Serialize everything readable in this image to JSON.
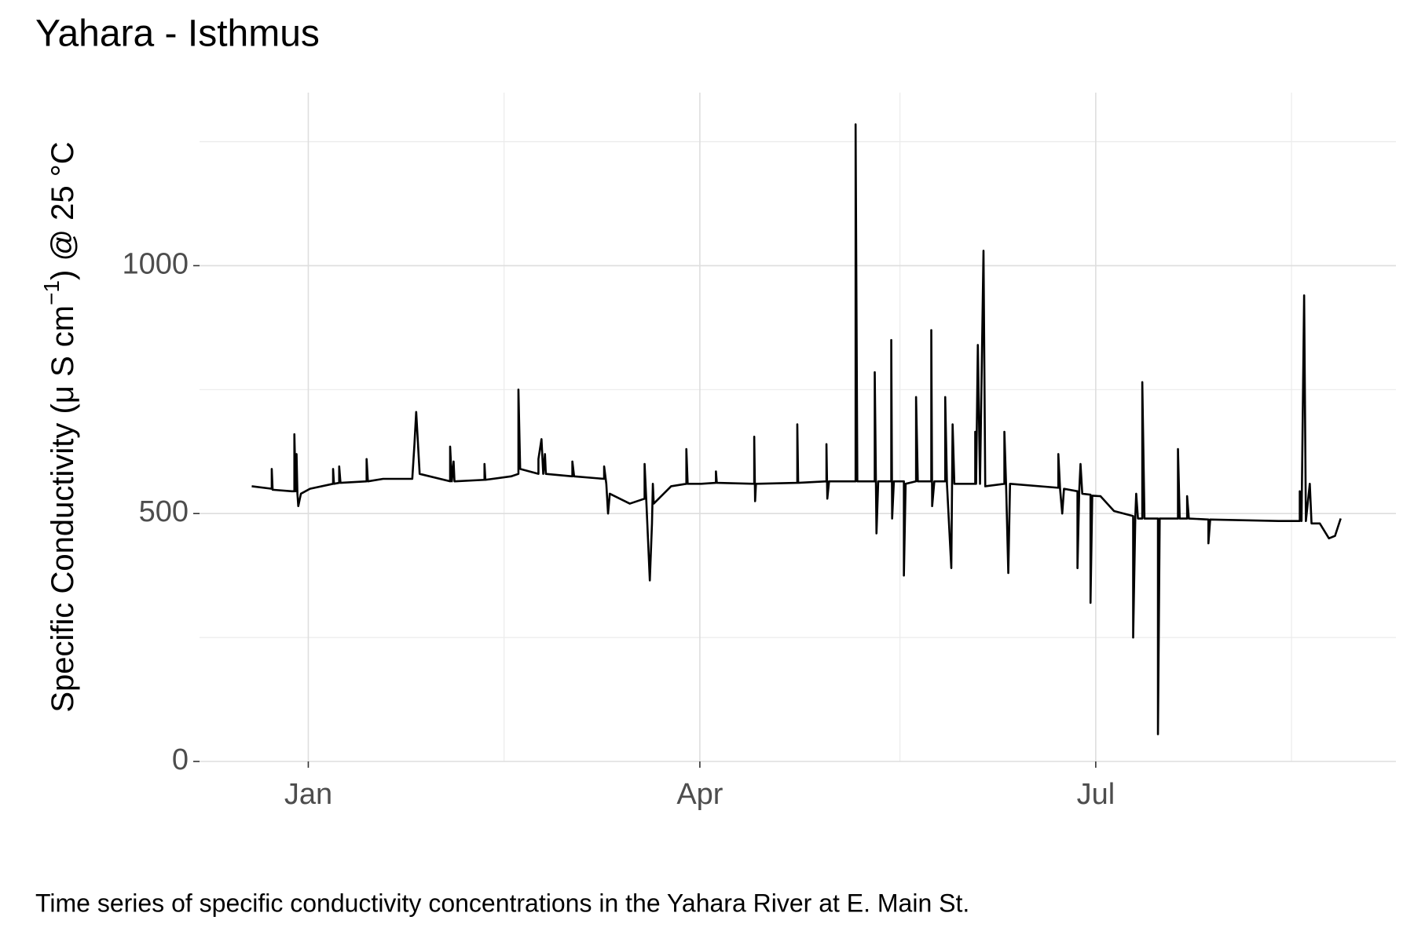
{
  "chart_data": {
    "type": "line",
    "title": "Yahara - Isthmus",
    "ylabel": {
      "before": "Specific Conductivity (μ S cm",
      "sup": "−1",
      "after": ") @ 25 °C"
    },
    "caption": "Time series of specific conductivity concentrations in the Yahara River at E. Main St.",
    "color": "#000000",
    "grid": true,
    "xlim": [
      -25,
      250
    ],
    "xticks": [
      {
        "value": 0,
        "label": "Jan"
      },
      {
        "value": 90,
        "label": "Apr"
      },
      {
        "value": 181,
        "label": "Jul"
      }
    ],
    "xminor": [
      45,
      136,
      226
    ],
    "ylim": [
      0,
      1349
    ],
    "yticks": [
      0,
      500,
      1000
    ],
    "yminor": [
      250,
      750,
      1250
    ],
    "x": [
      -13.0,
      -8.4,
      -8.4,
      -8.2,
      -3.8,
      -3.2,
      -3.2,
      -2.9,
      -2.7,
      -2.5,
      -2.3,
      -1.7,
      0.4,
      5.7,
      5.7,
      5.9,
      7.1,
      7.1,
      7.4,
      13.4,
      13.4,
      13.7,
      17.2,
      23.9,
      24.4,
      24.8,
      25.6,
      32.6,
      32.6,
      33.0,
      33.4,
      33.6,
      40.5,
      40.5,
      40.7,
      46.6,
      48.3,
      48.3,
      48.7,
      52.9,
      52.9,
      53.6,
      54.0,
      54.4,
      54.6,
      60.7,
      60.7,
      61.1,
      68.0,
      68.0,
      68.5,
      68.9,
      69.3,
      73.9,
      77.3,
      77.3,
      77.7,
      78.5,
      79.0,
      79.2,
      79.4,
      83.4,
      86.9,
      86.9,
      87.2,
      90.3,
      93.7,
      93.7,
      93.9,
      102.5,
      102.5,
      102.7,
      102.9,
      112.4,
      112.4,
      112.6,
      119.1,
      119.1,
      119.3,
      119.7,
      125.8,
      125.8,
      126.2,
      130.2,
      130.2,
      130.6,
      131.0,
      134.0,
      134.0,
      134.2,
      134.6,
      136.9,
      136.9,
      137.3,
      139.7,
      139.7,
      140.1,
      143.2,
      143.2,
      143.4,
      143.9,
      146.4,
      146.4,
      146.8,
      147.8,
      148.1,
      148.5,
      153.3,
      153.3,
      153.5,
      153.9,
      154.4,
      155.2,
      155.6,
      160.0,
      160.0,
      160.4,
      160.9,
      161.3,
      172.4,
      172.4,
      172.8,
      173.3,
      173.7,
      176.8,
      176.8,
      177.2,
      177.5,
      177.9,
      179.8,
      179.8,
      180.2,
      182.1,
      185.2,
      189.6,
      189.6,
      190.1,
      190.3,
      190.7,
      191.7,
      191.7,
      192.2,
      195.3,
      195.3,
      195.7,
      199.9,
      199.9,
      200.3,
      202.0,
      202.0,
      202.4,
      206.9,
      206.9,
      207.3,
      223.0,
      227.9,
      227.9,
      228.3,
      228.9,
      229.3,
      230.2,
      230.6,
      232.5,
      234.6,
      236.0,
      237.3
    ],
    "values": [
      555,
      550,
      590,
      548,
      545,
      545,
      660,
      545,
      620,
      540,
      515,
      540,
      550,
      560,
      590,
      560,
      562,
      595,
      562,
      565,
      610,
      565,
      570,
      570,
      640,
      705,
      580,
      565,
      635,
      565,
      605,
      565,
      568,
      600,
      568,
      575,
      580,
      750,
      590,
      580,
      610,
      650,
      580,
      620,
      580,
      575,
      605,
      575,
      570,
      595,
      560,
      500,
      540,
      520,
      530,
      600,
      525,
      365,
      480,
      560,
      520,
      555,
      560,
      630,
      560,
      560,
      562,
      585,
      562,
      560,
      655,
      525,
      560,
      562,
      680,
      562,
      565,
      640,
      530,
      565,
      565,
      1285,
      565,
      565,
      785,
      460,
      565,
      565,
      850,
      490,
      565,
      565,
      375,
      560,
      565,
      735,
      565,
      565,
      870,
      515,
      565,
      565,
      735,
      560,
      390,
      680,
      560,
      560,
      665,
      560,
      840,
      560,
      1030,
      555,
      560,
      665,
      555,
      380,
      560,
      552,
      620,
      550,
      500,
      550,
      545,
      390,
      545,
      600,
      540,
      538,
      320,
      536,
      535,
      505,
      495,
      250,
      495,
      540,
      490,
      490,
      765,
      490,
      490,
      55,
      490,
      490,
      630,
      490,
      490,
      535,
      490,
      488,
      440,
      488,
      485,
      485,
      545,
      485,
      940,
      485,
      560,
      480,
      480,
      450,
      455,
      490
    ]
  }
}
